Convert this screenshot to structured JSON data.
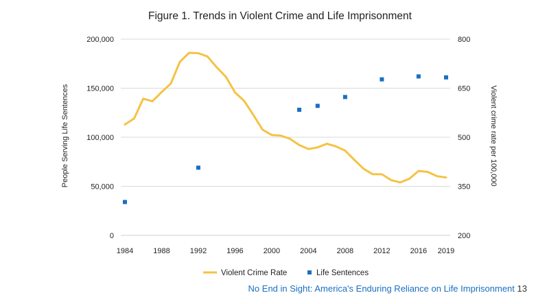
{
  "chart_data": {
    "type": "line",
    "title": "Figure 1. Trends in Violent Crime and Life Imprisonment",
    "ylabel_left": "People Serving Life Sentences",
    "ylabel_right": "Violent crime rate per 100,000",
    "ylim_left": [
      0,
      200000
    ],
    "ylim_right": [
      200,
      800
    ],
    "xlim": [
      1984,
      2019
    ],
    "x_ticks": [
      "1984",
      "1988",
      "1992",
      "1996",
      "2000",
      "2004",
      "2008",
      "2012",
      "2016",
      "2019"
    ],
    "y_ticks_left": [
      "0",
      "50,000",
      "100,000",
      "150,000",
      "200,000"
    ],
    "y_ticks_right": [
      "200",
      "350",
      "500",
      "650",
      "800"
    ],
    "grid": true,
    "legend_position": "bottom-center",
    "series": [
      {
        "name": "Violent Crime Rate",
        "type": "line",
        "axis": "right",
        "color": "#f5c242",
        "x": [
          1984,
          1985,
          1986,
          1987,
          1988,
          1989,
          1990,
          1991,
          1992,
          1993,
          1994,
          1995,
          1996,
          1997,
          1998,
          1999,
          2000,
          2001,
          2002,
          2003,
          2004,
          2005,
          2006,
          2007,
          2008,
          2009,
          2010,
          2011,
          2012,
          2013,
          2014,
          2015,
          2016,
          2017,
          2018,
          2019
        ],
        "values": [
          539,
          557,
          618,
          610,
          638,
          664,
          731,
          758,
          757,
          747,
          714,
          685,
          637,
          611,
          568,
          523,
          507,
          505,
          495,
          476,
          464,
          469,
          480,
          472,
          459,
          431,
          404,
          387,
          387,
          369,
          362,
          373,
          397,
          394,
          381,
          377
        ]
      },
      {
        "name": "Life Sentences",
        "type": "scatter",
        "axis": "left",
        "color": "#1a6fc2",
        "x": [
          1984,
          1992,
          2003,
          2005,
          2008,
          2012,
          2016,
          2019
        ],
        "values": [
          34000,
          69000,
          128000,
          132000,
          141000,
          159000,
          162000,
          161000
        ]
      }
    ]
  },
  "footer": {
    "text": "No End in Sight: America's Enduring Reliance on Life Imprisonment",
    "page": "13"
  }
}
